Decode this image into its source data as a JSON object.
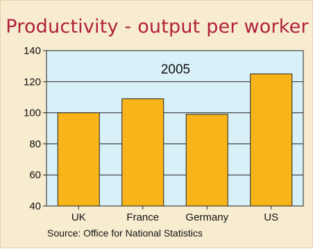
{
  "chart_data": {
    "type": "bar",
    "title": "Productivity - output per worker",
    "annotation": "2005",
    "categories": [
      "UK",
      "France",
      "Germany",
      "US"
    ],
    "values": [
      100,
      109,
      99,
      125
    ],
    "ylim": [
      40,
      140
    ],
    "yticks": [
      40,
      60,
      80,
      100,
      120,
      140
    ],
    "grid": true,
    "source": "Source: Office for National Statistics",
    "colors": {
      "panel_background": "#f7ecd0",
      "plot_background": "#d8f0f8",
      "bar_fill": "#f8b418",
      "bar_stroke": "#222222",
      "title": "#b0203a"
    }
  }
}
